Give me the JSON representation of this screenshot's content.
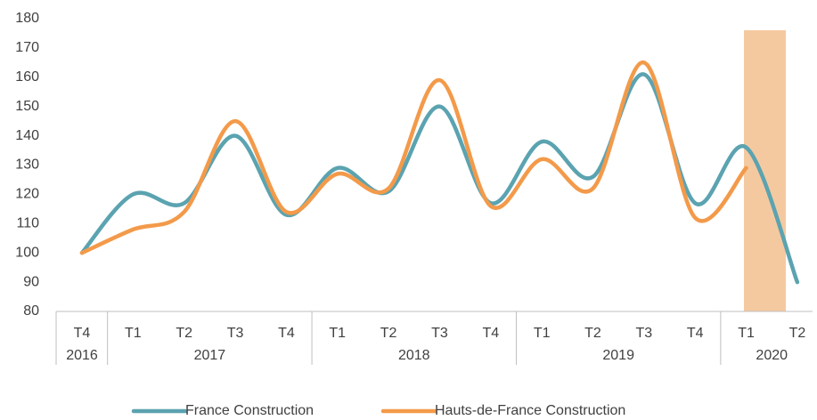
{
  "chart_data": {
    "type": "line",
    "categories": [
      "T4",
      "T1",
      "T2",
      "T3",
      "T4",
      "T1",
      "T2",
      "T3",
      "T4",
      "T1",
      "T2",
      "T3",
      "T4",
      "T1",
      "T2"
    ],
    "groups": [
      {
        "label": "2016",
        "span": 1
      },
      {
        "label": "2017",
        "span": 4
      },
      {
        "label": "2018",
        "span": 4
      },
      {
        "label": "2019",
        "span": 4
      },
      {
        "label": "2020",
        "span": 2
      }
    ],
    "series": [
      {
        "name": "France Construction",
        "color": "#5ba3b0",
        "values": [
          100,
          120,
          117,
          140,
          113,
          129,
          121,
          150,
          117,
          138,
          126,
          161,
          117,
          136,
          90
        ]
      },
      {
        "name": "Hauts-de-France Construction",
        "color": "#f39a4a",
        "values": [
          100,
          108,
          114,
          145,
          114,
          127,
          122,
          159,
          116,
          132,
          122,
          165,
          112,
          129,
          null
        ]
      }
    ],
    "ylim": [
      80,
      180
    ],
    "yticks": [
      80,
      90,
      100,
      110,
      120,
      130,
      140,
      150,
      160,
      170,
      180
    ],
    "grid": false,
    "legend": "bottom",
    "smooth": true
  }
}
